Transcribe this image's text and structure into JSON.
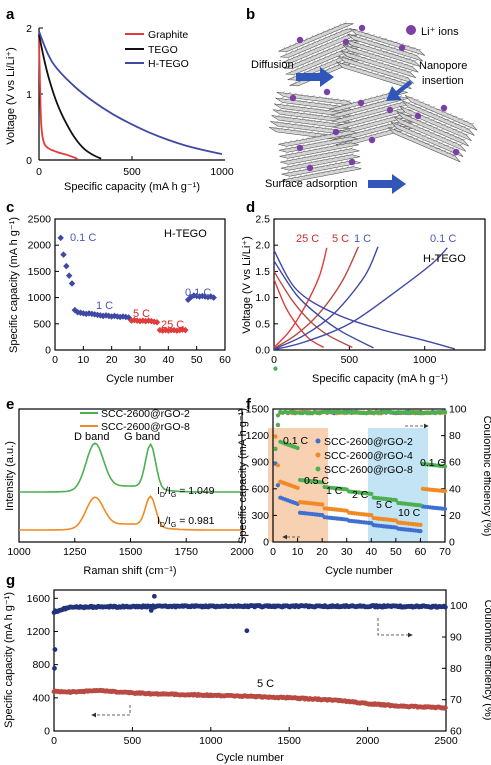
{
  "colors": {
    "graphite": "#e23b3b",
    "tego": "#111111",
    "htego": "#3f49a3",
    "blue_text": "#4b56b8",
    "red_text": "#d22a2a",
    "green": "#4caf50",
    "orange": "#f08a24",
    "blue": "#3f6fd0",
    "navy": "#22337a",
    "brown": "#b94a43",
    "d_band": "#f6c9a4",
    "g_band": "#b9dff2"
  },
  "panel_labels": [
    "a",
    "b",
    "c",
    "d",
    "e",
    "f",
    "g"
  ],
  "chart_data": [
    {
      "panel": "a",
      "type": "line",
      "xlabel": "Specific capacity (mA h g⁻¹)",
      "ylabel": "Voltage (V vs Li/Li⁺)",
      "xlim": [
        0,
        1000
      ],
      "ylim": [
        0,
        2
      ],
      "xticks": [
        "0",
        "500",
        "1000"
      ],
      "yticks": [
        "0",
        "1",
        "2"
      ],
      "legend_position": "top-right",
      "series": [
        {
          "name": "Graphite",
          "color": "graphite",
          "points": [
            [
              0,
              1.9
            ],
            [
              5,
              1.2
            ],
            [
              12,
              0.55
            ],
            [
              25,
              0.28
            ],
            [
              50,
              0.18
            ],
            [
              100,
              0.12
            ],
            [
              150,
              0.08
            ],
            [
              200,
              0.03
            ],
            [
              210,
              0.01
            ]
          ]
        },
        {
          "name": "TEGO",
          "color": "tego",
          "points": [
            [
              0,
              1.9
            ],
            [
              30,
              1.5
            ],
            [
              60,
              1.18
            ],
            [
              100,
              0.85
            ],
            [
              150,
              0.55
            ],
            [
              200,
              0.32
            ],
            [
              250,
              0.16
            ],
            [
              300,
              0.07
            ],
            [
              340,
              0.02
            ]
          ]
        },
        {
          "name": "H-TEGO",
          "color": "htego",
          "points": [
            [
              0,
              1.95
            ],
            [
              50,
              1.6
            ],
            [
              100,
              1.38
            ],
            [
              200,
              1.1
            ],
            [
              300,
              0.88
            ],
            [
              400,
              0.7
            ],
            [
              500,
              0.55
            ],
            [
              600,
              0.42
            ],
            [
              700,
              0.31
            ],
            [
              800,
              0.22
            ],
            [
              900,
              0.15
            ],
            [
              1000,
              0.09
            ]
          ]
        }
      ]
    },
    {
      "panel": "b",
      "type": "other",
      "labels": {
        "ions": "Li⁺ ions",
        "diffusion": "Diffusion",
        "nanopore": "Nanopore\ninsertion",
        "surface": "Surface adsorption"
      }
    },
    {
      "panel": "c",
      "type": "scatter",
      "xlabel": "Cycle number",
      "ylabel": "Specific capacity (mA h g⁻¹)",
      "xlim": [
        0,
        60
      ],
      "ylim": [
        0,
        2500
      ],
      "xticks": [
        "0",
        "10",
        "20",
        "30",
        "40",
        "50",
        "60"
      ],
      "yticks": [
        "0",
        "500",
        "1000",
        "1500",
        "2000",
        "2500"
      ],
      "title": "H-TEGO",
      "rate_labels": [
        "0.1 C",
        "1 C",
        "5 C",
        "25 C",
        "0.1 C"
      ],
      "points": [
        [
          2,
          2140
        ],
        [
          3,
          1820
        ],
        [
          4,
          1600
        ],
        [
          5,
          1420
        ],
        [
          6,
          1270
        ],
        [
          7,
          760
        ],
        [
          8,
          720
        ],
        [
          9,
          710
        ],
        [
          10,
          700
        ],
        [
          11,
          690
        ],
        [
          12,
          700
        ],
        [
          13,
          690
        ],
        [
          14,
          680
        ],
        [
          15,
          670
        ],
        [
          16,
          660
        ],
        [
          17,
          650
        ],
        [
          18,
          660
        ],
        [
          19,
          650
        ],
        [
          20,
          640
        ],
        [
          21,
          650
        ],
        [
          22,
          640
        ],
        [
          23,
          630
        ],
        [
          24,
          640
        ],
        [
          25,
          630
        ],
        [
          26,
          620
        ],
        [
          27,
          560
        ],
        [
          28,
          570
        ],
        [
          29,
          560
        ],
        [
          30,
          550
        ],
        [
          31,
          560
        ],
        [
          32,
          550
        ],
        [
          33,
          560
        ],
        [
          34,
          550
        ],
        [
          35,
          540
        ],
        [
          36,
          530
        ],
        [
          37,
          380
        ],
        [
          38,
          370
        ],
        [
          39,
          380
        ],
        [
          40,
          370
        ],
        [
          41,
          380
        ],
        [
          42,
          380
        ],
        [
          43,
          370
        ],
        [
          44,
          380
        ],
        [
          45,
          390
        ],
        [
          46,
          380
        ],
        [
          47,
          960
        ],
        [
          48,
          1010
        ],
        [
          49,
          1040
        ],
        [
          50,
          1030
        ],
        [
          51,
          1020
        ],
        [
          52,
          1030
        ],
        [
          53,
          1020
        ],
        [
          54,
          1010
        ],
        [
          55,
          1020
        ],
        [
          56,
          1000
        ]
      ]
    },
    {
      "panel": "d",
      "type": "line",
      "xlabel": "Specific capacity (mA h g⁻¹)",
      "ylabel": "Voltage (V vs Li/Li⁺)",
      "xlim": [
        0,
        1400
      ],
      "ylim": [
        0,
        2.5
      ],
      "xticks": [
        "0",
        "500",
        "1000"
      ],
      "yticks": [
        "0.0",
        "0.5",
        "1.0",
        "1.5",
        "2.0",
        "2.5"
      ],
      "title": "H-TEGO",
      "series_labels": [
        "25 C",
        "5 C",
        "1 C",
        "0.1 C"
      ],
      "series": [
        {
          "rate": "25 C",
          "color": "graphite",
          "charge": [
            [
              0,
              0.05
            ],
            [
              100,
              0.35
            ],
            [
              200,
              0.8
            ],
            [
              300,
              1.4
            ],
            [
              350,
              1.95
            ]
          ],
          "discharge": [
            [
              0,
              1.35
            ],
            [
              80,
              0.8
            ],
            [
              160,
              0.45
            ],
            [
              240,
              0.2
            ],
            [
              330,
              0.05
            ]
          ]
        },
        {
          "rate": "5 C",
          "color": "brown",
          "charge": [
            [
              0,
              0.03
            ],
            [
              150,
              0.3
            ],
            [
              300,
              0.7
            ],
            [
              450,
              1.3
            ],
            [
              560,
              1.97
            ]
          ],
          "discharge": [
            [
              0,
              1.5
            ],
            [
              120,
              0.95
            ],
            [
              240,
              0.55
            ],
            [
              360,
              0.28
            ],
            [
              520,
              0.05
            ]
          ]
        },
        {
          "rate": "1 C",
          "color": "htego",
          "charge": [
            [
              0,
              0.02
            ],
            [
              200,
              0.28
            ],
            [
              400,
              0.7
            ],
            [
              600,
              1.4
            ],
            [
              690,
              1.97
            ]
          ],
          "discharge": [
            [
              0,
              1.7
            ],
            [
              150,
              1.05
            ],
            [
              300,
              0.65
            ],
            [
              450,
              0.35
            ],
            [
              660,
              0.04
            ]
          ]
        },
        {
          "rate": "0.1 C",
          "color": "htego",
          "charge": [
            [
              0,
              0.01
            ],
            [
              200,
              0.15
            ],
            [
              500,
              0.5
            ],
            [
              800,
              1.1
            ],
            [
              1050,
              1.65
            ],
            [
              1150,
              1.95
            ]
          ],
          "discharge": [
            [
              0,
              1.9
            ],
            [
              150,
              1.15
            ],
            [
              400,
              0.7
            ],
            [
              700,
              0.4
            ],
            [
              1000,
              0.18
            ],
            [
              1200,
              0.02
            ]
          ]
        }
      ]
    },
    {
      "panel": "e",
      "type": "line",
      "xlabel": "Raman shift (cm⁻¹)",
      "ylabel": "Intensity (a.u.)",
      "xlim": [
        1000,
        2000
      ],
      "xticks": [
        "1000",
        "1250",
        "1500",
        "1750",
        "2000"
      ],
      "bands": [
        "D band",
        "G band"
      ],
      "ratio_labels": [
        "I<sub>D</sub>/I<sub>G</sub> = 1.049",
        "I<sub>D</sub>/I<sub>G</sub> = 0.981"
      ],
      "series": [
        {
          "name": "SCC-2600@rGO-2",
          "color": "green"
        },
        {
          "name": "SCC-2600@rGO-8",
          "color": "orange"
        }
      ]
    },
    {
      "panel": "f",
      "type": "scatter",
      "xlabel": "Cycle number",
      "ylabel": "Specific capacity (mA h g⁻¹)",
      "y2label": "Coulombic efficiency (%)",
      "xlim": [
        0,
        70
      ],
      "ylim": [
        0,
        1500
      ],
      "y2lim": [
        0,
        100
      ],
      "xticks": [
        "0",
        "10",
        "20",
        "30",
        "40",
        "50",
        "60",
        "70"
      ],
      "yticks": [
        "0",
        "300",
        "600",
        "900",
        "1200",
        "1500"
      ],
      "y2ticks": [
        "0",
        "20",
        "40",
        "60",
        "80",
        "100"
      ],
      "rate_labels": [
        "0.1 C",
        "0.5 C",
        "1 C",
        "2 C",
        "5 C",
        "10 C",
        "0.1 C"
      ],
      "series": [
        {
          "name": "SCC-2600@rGO-2",
          "color": "blue",
          "capacity_by_stage": [
            520,
            330,
            280,
            240,
            190,
            150,
            400
          ]
        },
        {
          "name": "SCC-2600@rGO-4",
          "color": "orange",
          "capacity_by_stage": [
            700,
            450,
            380,
            330,
            270,
            220,
            600
          ]
        },
        {
          "name": "SCC-2600@rGO-8",
          "color": "green",
          "capacity_by_stage": [
            1150,
            700,
            620,
            570,
            500,
            440,
            880
          ]
        }
      ]
    },
    {
      "panel": "g",
      "type": "scatter",
      "xlabel": "Cycle number",
      "ylabel": "Specific capacity (mA h g⁻¹)",
      "y2label": "Coulombic efficiency (%)",
      "xlim": [
        0,
        2500
      ],
      "ylim": [
        0,
        1700
      ],
      "y2lim": [
        60,
        105
      ],
      "xticks": [
        "0",
        "500",
        "1000",
        "1500",
        "2000",
        "2500"
      ],
      "yticks": [
        "0",
        "400",
        "800",
        "1200",
        "1600"
      ],
      "y2ticks": [
        "60",
        "70",
        "80",
        "90",
        "100"
      ],
      "rate_label": "5 C",
      "capacity": [
        [
          0,
          480
        ],
        [
          100,
          470
        ],
        [
          200,
          480
        ],
        [
          300,
          490
        ],
        [
          400,
          470
        ],
        [
          500,
          460
        ],
        [
          600,
          450
        ],
        [
          800,
          440
        ],
        [
          1000,
          430
        ],
        [
          1200,
          420
        ],
        [
          1500,
          400
        ],
        [
          1800,
          370
        ],
        [
          2000,
          330
        ],
        [
          2200,
          300
        ],
        [
          2500,
          280
        ]
      ],
      "efficiency": [
        [
          0,
          98
        ],
        [
          100,
          99.5
        ],
        [
          500,
          99.7
        ],
        [
          1000,
          99.8
        ],
        [
          1500,
          99.8
        ],
        [
          2000,
          99.8
        ],
        [
          2500,
          99.7
        ]
      ]
    }
  ]
}
